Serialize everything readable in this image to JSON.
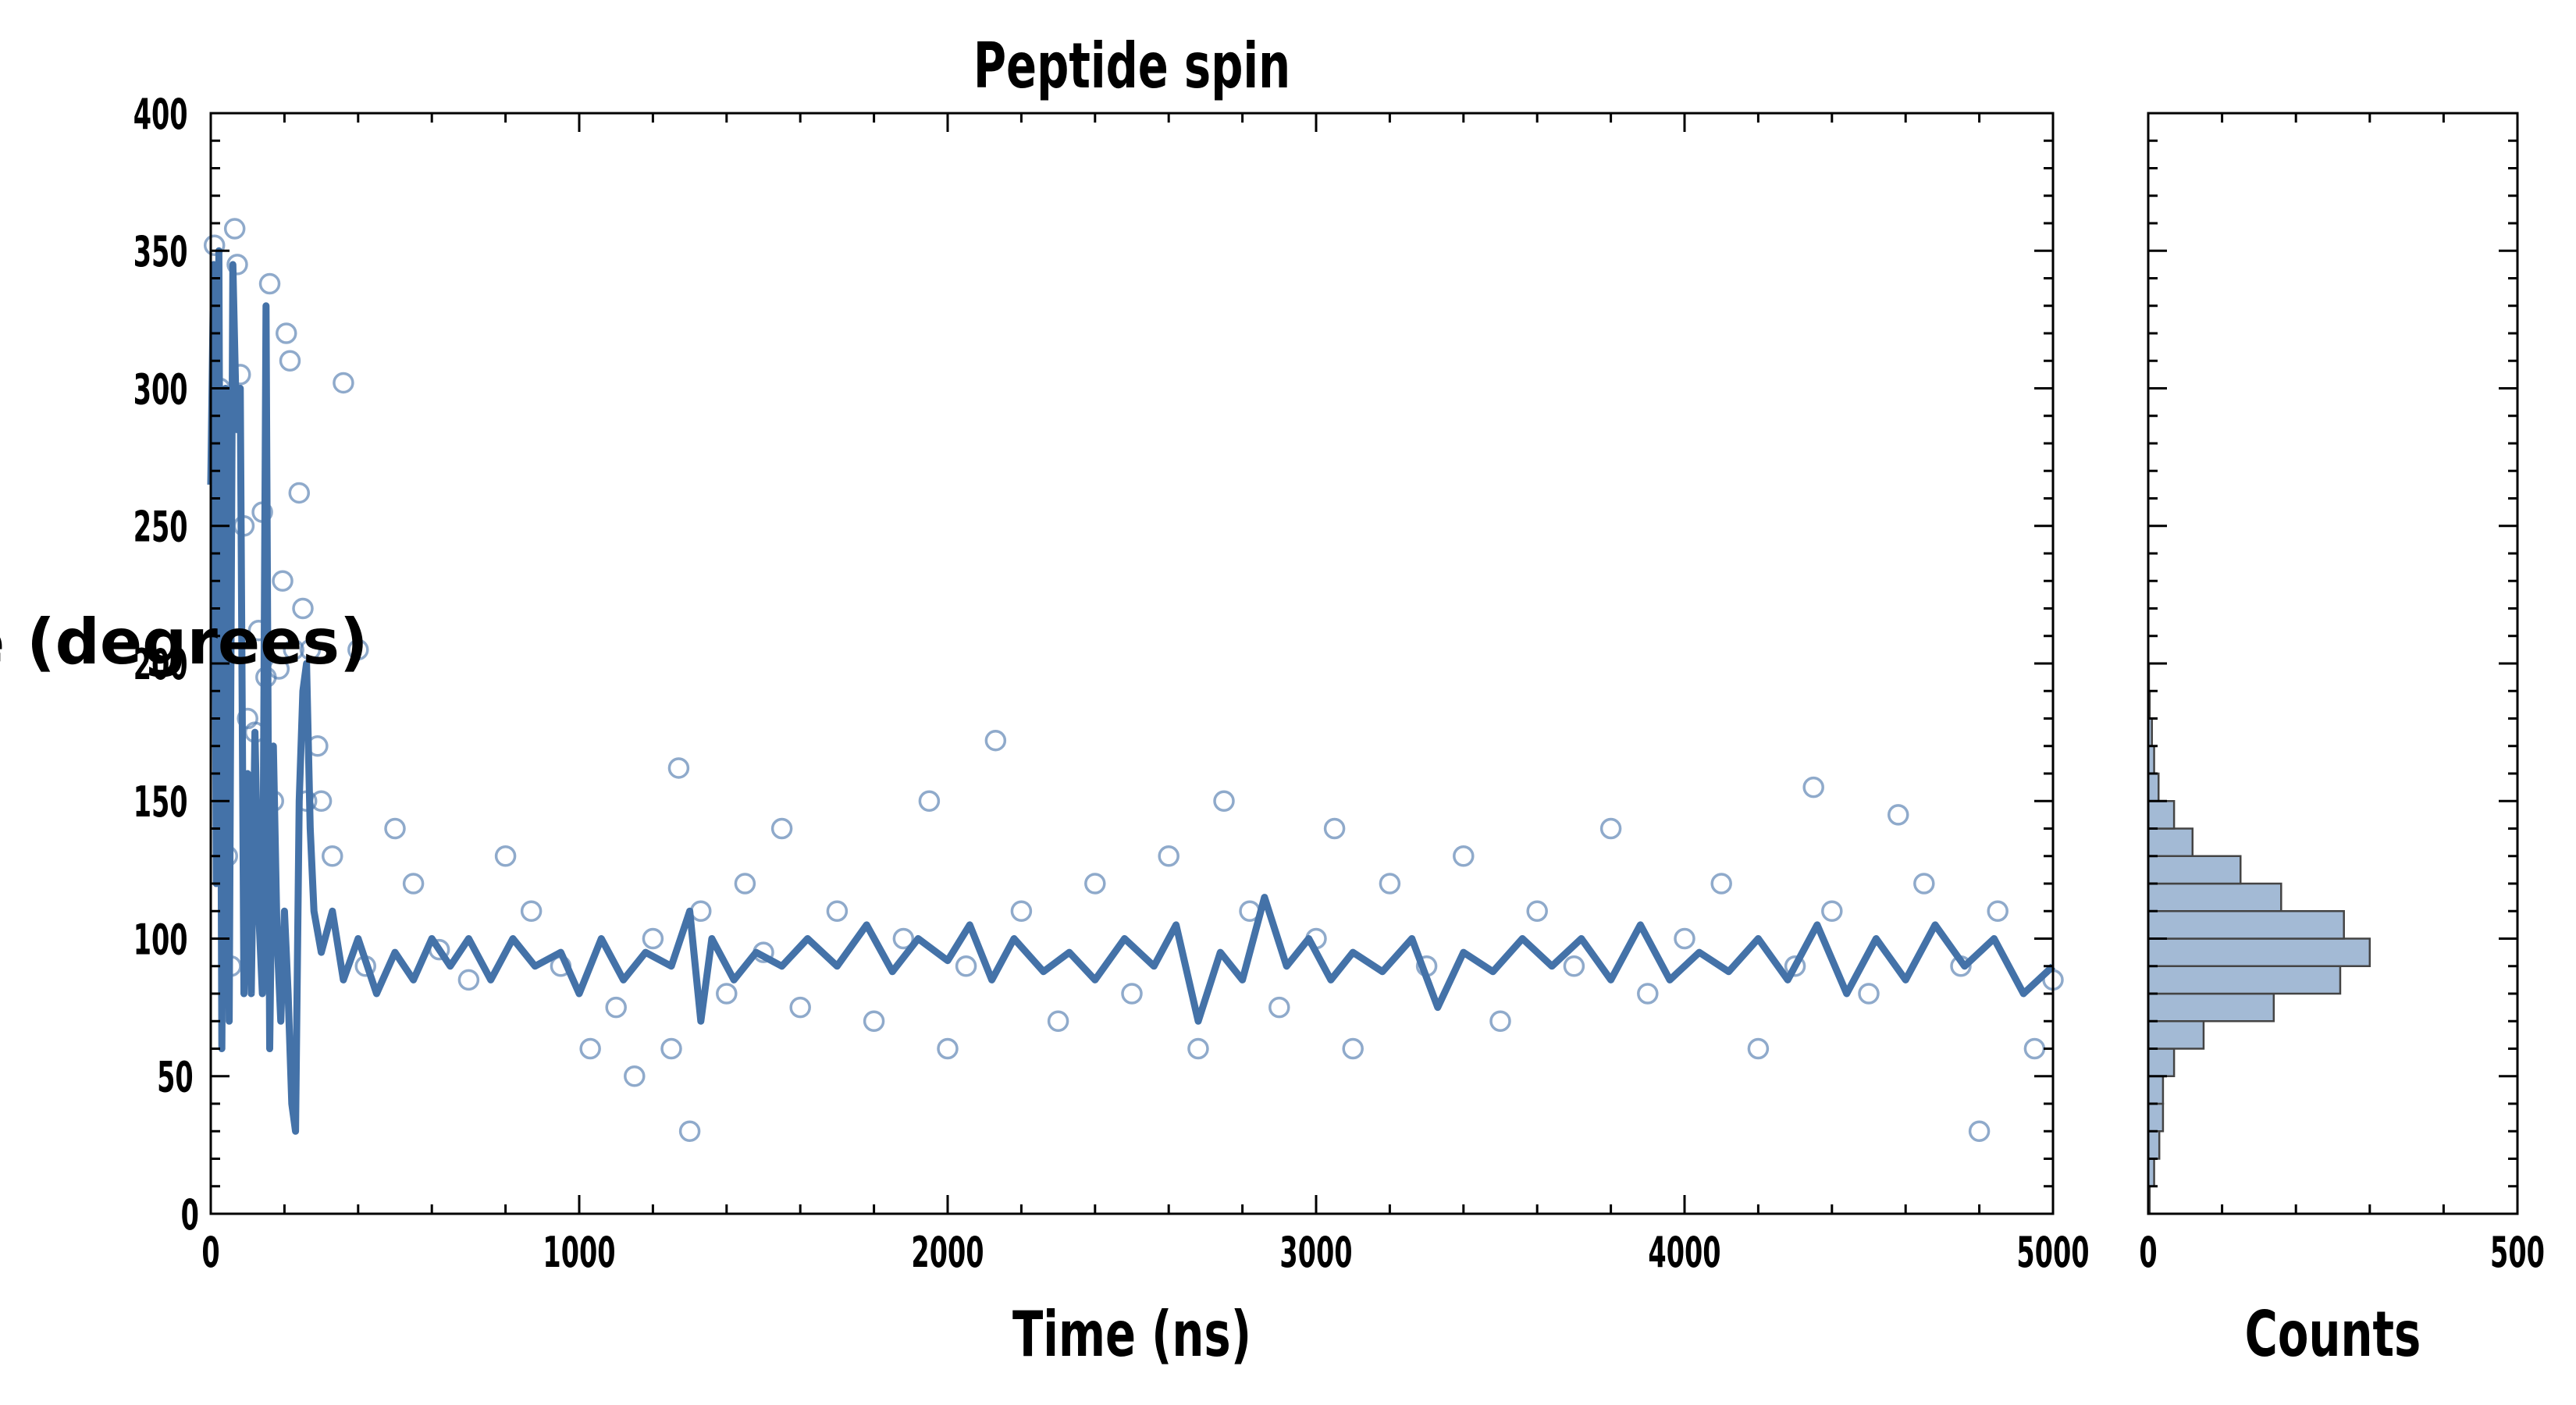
{
  "chart_data": [
    {
      "type": "scatter",
      "title": "Peptide spin",
      "xlabel": "Time (ns)",
      "ylabel": "Angle (degrees)",
      "xlim": [
        0,
        5000
      ],
      "ylim": [
        0,
        400
      ],
      "xticks": [
        0,
        1000,
        2000,
        3000,
        4000,
        5000
      ],
      "yticks": [
        0,
        50,
        100,
        150,
        200,
        250,
        300,
        350,
        400
      ],
      "grid": false,
      "color": "#4472a8",
      "series": [
        {
          "kind": "scatter",
          "marker": "open-circle",
          "points": [
            [
              10,
              352
            ],
            [
              25,
              300
            ],
            [
              35,
              260
            ],
            [
              45,
              130
            ],
            [
              55,
              90
            ],
            [
              65,
              358
            ],
            [
              72,
              345
            ],
            [
              80,
              305
            ],
            [
              90,
              250
            ],
            [
              100,
              180
            ],
            [
              110,
              120
            ],
            [
              120,
              175
            ],
            [
              130,
              212
            ],
            [
              140,
              255
            ],
            [
              150,
              195
            ],
            [
              160,
              338
            ],
            [
              170,
              150
            ],
            [
              185,
              198
            ],
            [
              195,
              230
            ],
            [
              205,
              320
            ],
            [
              215,
              310
            ],
            [
              225,
              205
            ],
            [
              240,
              262
            ],
            [
              250,
              220
            ],
            [
              260,
              150
            ],
            [
              270,
              205
            ],
            [
              290,
              170
            ],
            [
              300,
              150
            ],
            [
              330,
              130
            ],
            [
              360,
              302
            ],
            [
              400,
              205
            ],
            [
              420,
              90
            ],
            [
              500,
              140
            ],
            [
              550,
              120
            ],
            [
              620,
              96
            ],
            [
              700,
              85
            ],
            [
              800,
              130
            ],
            [
              870,
              110
            ],
            [
              950,
              90
            ],
            [
              1030,
              60
            ],
            [
              1100,
              75
            ],
            [
              1150,
              50
            ],
            [
              1200,
              100
            ],
            [
              1250,
              60
            ],
            [
              1270,
              162
            ],
            [
              1300,
              30
            ],
            [
              1330,
              110
            ],
            [
              1400,
              80
            ],
            [
              1450,
              120
            ],
            [
              1500,
              95
            ],
            [
              1550,
              140
            ],
            [
              1600,
              75
            ],
            [
              1700,
              110
            ],
            [
              1800,
              70
            ],
            [
              1880,
              100
            ],
            [
              1950,
              150
            ],
            [
              2000,
              60
            ],
            [
              2050,
              90
            ],
            [
              2130,
              172
            ],
            [
              2200,
              110
            ],
            [
              2300,
              70
            ],
            [
              2400,
              120
            ],
            [
              2500,
              80
            ],
            [
              2600,
              130
            ],
            [
              2680,
              60
            ],
            [
              2750,
              150
            ],
            [
              2820,
              110
            ],
            [
              2900,
              75
            ],
            [
              3000,
              100
            ],
            [
              3050,
              140
            ],
            [
              3100,
              60
            ],
            [
              3200,
              120
            ],
            [
              3300,
              90
            ],
            [
              3400,
              130
            ],
            [
              3500,
              70
            ],
            [
              3600,
              110
            ],
            [
              3700,
              90
            ],
            [
              3800,
              140
            ],
            [
              3900,
              80
            ],
            [
              4000,
              100
            ],
            [
              4100,
              120
            ],
            [
              4200,
              60
            ],
            [
              4300,
              90
            ],
            [
              4350,
              155
            ],
            [
              4400,
              110
            ],
            [
              4500,
              80
            ],
            [
              4580,
              145
            ],
            [
              4650,
              120
            ],
            [
              4750,
              90
            ],
            [
              4800,
              30
            ],
            [
              4850,
              110
            ],
            [
              4950,
              60
            ],
            [
              5000,
              85
            ]
          ]
        },
        {
          "kind": "line",
          "name": "",
          "points": [
            [
              0,
              265
            ],
            [
              8,
              345
            ],
            [
              15,
              120
            ],
            [
              22,
              350
            ],
            [
              30,
              60
            ],
            [
              40,
              300
            ],
            [
              50,
              70
            ],
            [
              60,
              345
            ],
            [
              70,
              285
            ],
            [
              80,
              300
            ],
            [
              90,
              80
            ],
            [
              100,
              160
            ],
            [
              110,
              80
            ],
            [
              120,
              175
            ],
            [
              130,
              110
            ],
            [
              140,
              80
            ],
            [
              150,
              330
            ],
            [
              160,
              60
            ],
            [
              170,
              170
            ],
            [
              180,
              100
            ],
            [
              190,
              70
            ],
            [
              200,
              110
            ],
            [
              210,
              80
            ],
            [
              220,
              40
            ],
            [
              230,
              30
            ],
            [
              240,
              150
            ],
            [
              250,
              190
            ],
            [
              260,
              200
            ],
            [
              270,
              140
            ],
            [
              280,
              110
            ],
            [
              300,
              95
            ],
            [
              330,
              110
            ],
            [
              360,
              85
            ],
            [
              400,
              100
            ],
            [
              450,
              80
            ],
            [
              500,
              95
            ],
            [
              550,
              85
            ],
            [
              600,
              100
            ],
            [
              650,
              90
            ],
            [
              700,
              100
            ],
            [
              760,
              85
            ],
            [
              820,
              100
            ],
            [
              880,
              90
            ],
            [
              950,
              95
            ],
            [
              1000,
              80
            ],
            [
              1060,
              100
            ],
            [
              1120,
              85
            ],
            [
              1180,
              95
            ],
            [
              1250,
              90
            ],
            [
              1300,
              110
            ],
            [
              1330,
              70
            ],
            [
              1360,
              100
            ],
            [
              1420,
              85
            ],
            [
              1480,
              95
            ],
            [
              1550,
              90
            ],
            [
              1620,
              100
            ],
            [
              1700,
              90
            ],
            [
              1780,
              105
            ],
            [
              1850,
              88
            ],
            [
              1920,
              100
            ],
            [
              2000,
              92
            ],
            [
              2060,
              105
            ],
            [
              2120,
              85
            ],
            [
              2180,
              100
            ],
            [
              2260,
              88
            ],
            [
              2330,
              95
            ],
            [
              2400,
              85
            ],
            [
              2480,
              100
            ],
            [
              2560,
              90
            ],
            [
              2620,
              105
            ],
            [
              2680,
              70
            ],
            [
              2740,
              95
            ],
            [
              2800,
              85
            ],
            [
              2860,
              115
            ],
            [
              2920,
              90
            ],
            [
              2980,
              100
            ],
            [
              3040,
              85
            ],
            [
              3100,
              95
            ],
            [
              3180,
              88
            ],
            [
              3260,
              100
            ],
            [
              3330,
              75
            ],
            [
              3400,
              95
            ],
            [
              3480,
              88
            ],
            [
              3560,
              100
            ],
            [
              3640,
              90
            ],
            [
              3720,
              100
            ],
            [
              3800,
              85
            ],
            [
              3880,
              105
            ],
            [
              3960,
              85
            ],
            [
              4040,
              95
            ],
            [
              4120,
              88
            ],
            [
              4200,
              100
            ],
            [
              4280,
              85
            ],
            [
              4360,
              105
            ],
            [
              4440,
              80
            ],
            [
              4520,
              100
            ],
            [
              4600,
              85
            ],
            [
              4680,
              105
            ],
            [
              4760,
              90
            ],
            [
              4840,
              100
            ],
            [
              4920,
              80
            ],
            [
              5000,
              90
            ]
          ]
        }
      ]
    },
    {
      "type": "bar",
      "orientation": "horizontal",
      "title": "",
      "xlabel": "Counts",
      "ylabel": "",
      "xlim": [
        0,
        500
      ],
      "ylim": [
        0,
        400
      ],
      "xticks": [
        0,
        500
      ],
      "grid": false,
      "color": "#a3bad5",
      "bins": [
        [
          0,
          10,
          2
        ],
        [
          10,
          20,
          8
        ],
        [
          20,
          30,
          15
        ],
        [
          30,
          40,
          20
        ],
        [
          40,
          50,
          20
        ],
        [
          50,
          60,
          35
        ],
        [
          60,
          70,
          75
        ],
        [
          70,
          80,
          170
        ],
        [
          80,
          90,
          260
        ],
        [
          90,
          100,
          300
        ],
        [
          100,
          110,
          265
        ],
        [
          110,
          120,
          180
        ],
        [
          120,
          130,
          125
        ],
        [
          130,
          140,
          60
        ],
        [
          140,
          150,
          35
        ],
        [
          150,
          160,
          14
        ],
        [
          160,
          170,
          8
        ],
        [
          170,
          180,
          5
        ],
        [
          180,
          190,
          2
        ],
        [
          190,
          200,
          1
        ]
      ]
    }
  ]
}
